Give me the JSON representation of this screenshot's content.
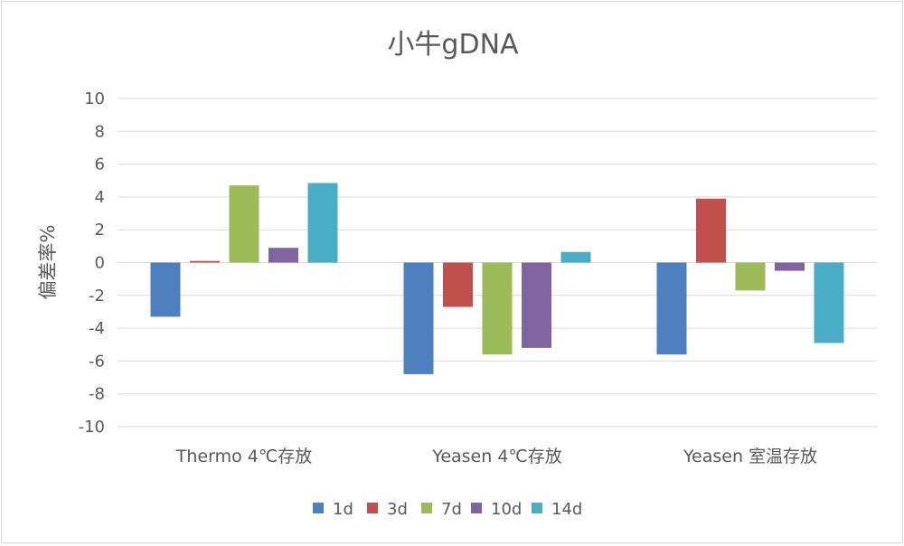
{
  "chart_data": {
    "type": "bar",
    "title": "小牛gDNA",
    "xlabel": "",
    "ylabel": "偏差率%",
    "ylim": [
      -10,
      10
    ],
    "yticks": [
      10,
      8,
      6,
      4,
      2,
      0,
      -2,
      -4,
      -6,
      -8,
      -10
    ],
    "categories": [
      "Thermo 4℃存放",
      "Yeasen 4℃存放",
      "Yeasen 室温存放"
    ],
    "series": [
      {
        "name": "1d",
        "color": "#4e7fbf",
        "values": [
          -3.3,
          -6.8,
          -5.6
        ]
      },
      {
        "name": "3d",
        "color": "#c0504d",
        "values": [
          0.1,
          -2.7,
          3.9
        ]
      },
      {
        "name": "7d",
        "color": "#9bbb59",
        "values": [
          4.7,
          -5.6,
          -1.7
        ]
      },
      {
        "name": "10d",
        "color": "#8064a2",
        "values": [
          0.9,
          -5.2,
          -0.5
        ]
      },
      {
        "name": "14d",
        "color": "#4bacc6",
        "values": [
          4.85,
          0.65,
          -4.9
        ]
      }
    ],
    "grid": true,
    "legend_position": "bottom"
  }
}
